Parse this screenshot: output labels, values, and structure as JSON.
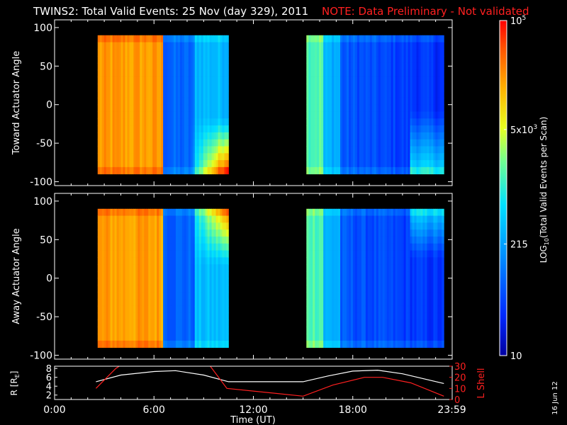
{
  "title": "TWINS2: Total Valid Events: 25 Nov (day 329), 2011",
  "note": "NOTE: Data Preliminary - Not validated",
  "date_stamp": "16 Jun 12",
  "colors": {
    "background": "#000000",
    "foreground": "#ffffff",
    "note": "#ff2020",
    "lshell": "#ff2020"
  },
  "chart_data": [
    {
      "type": "heatmap",
      "name": "toward",
      "ylabel": "Toward Actuator Angle",
      "ylim": [
        -105,
        110
      ],
      "yticks": [
        100,
        50,
        0,
        -50,
        -100
      ],
      "xlim": [
        0,
        24
      ],
      "data_x_ranges": [
        [
          2.6,
          10.5
        ],
        [
          15.2,
          23.5
        ]
      ],
      "data_y_range": [
        -90,
        90
      ],
      "profile": "toward"
    },
    {
      "type": "heatmap",
      "name": "away",
      "ylabel": "Away Actuator Angle",
      "ylim": [
        -105,
        110
      ],
      "yticks": [
        100,
        50,
        0,
        -50,
        -100
      ],
      "xlim": [
        0,
        24
      ],
      "data_x_ranges": [
        [
          2.6,
          10.5
        ],
        [
          15.2,
          23.5
        ]
      ],
      "data_y_range": [
        -90,
        90
      ],
      "profile": "away"
    },
    {
      "type": "line",
      "name": "ephemeris",
      "xlabel": "Time (UT)",
      "xlim": [
        0,
        24
      ],
      "xticks": [
        "0:00",
        "6:00",
        "12:00",
        "18:00",
        "23:59"
      ],
      "xtick_values": [
        0,
        6,
        12,
        18,
        23.98
      ],
      "left_axis": {
        "label": "R [RE]",
        "ylim": [
          1,
          8.5
        ],
        "ticks": [
          2,
          4,
          6,
          8
        ]
      },
      "right_axis": {
        "label": "L Shell",
        "ylim": [
          0,
          30
        ],
        "ticks": [
          0,
          10,
          20,
          30
        ]
      },
      "series": [
        {
          "name": "R",
          "color": "#ffffff",
          "axis": "left",
          "x": [
            2.5,
            4,
            6,
            7.3,
            9,
            10.5,
            15,
            16.5,
            18,
            19.5,
            21,
            23.5
          ],
          "y": [
            5,
            6.5,
            7.3,
            7.5,
            6.5,
            5,
            5,
            6.3,
            7.4,
            7.6,
            6.8,
            4.6
          ]
        },
        {
          "name": "L Shell",
          "color": "#ff2020",
          "axis": "right",
          "segments": [
            {
              "x": [
                2.5,
                3.7,
                3.9
              ],
              "y": [
                10,
                28,
                31
              ]
            },
            {
              "x": [
                9.4,
                10.4,
                15,
                16.8,
                18.7,
                19.8,
                21.5,
                23.5
              ],
              "y": [
                31,
                10,
                3,
                13,
                20,
                20,
                15,
                3
              ]
            }
          ]
        }
      ]
    },
    {
      "type": "colorbar",
      "name": "colorbar",
      "label_base": "LOG",
      "label_sub": "10",
      "label_rest": "(Total Valid Events per Scan)",
      "range": [
        10,
        100000
      ],
      "ticks": [
        {
          "value": 10,
          "base": "10",
          "exp": ""
        },
        {
          "value": 215,
          "base": "215",
          "exp": ""
        },
        {
          "value": 5000,
          "base": "5x10",
          "exp": "3"
        },
        {
          "value": 100000,
          "base": "10",
          "exp": "5"
        }
      ]
    }
  ]
}
